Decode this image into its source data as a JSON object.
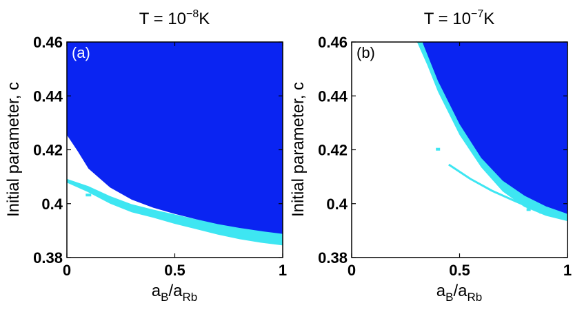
{
  "colors": {
    "dark": "#0a24f2",
    "light": "#3ee6f2",
    "background": "#ffffff"
  },
  "chart_data": [
    {
      "type": "heatmap",
      "panel": "(a)",
      "title": {
        "base": "T = 10",
        "exp": "−8",
        "unit": "K"
      },
      "xlabel": {
        "a": "a",
        "sub1": "B",
        "slash": "/a",
        "sub2": "Rb"
      },
      "ylabel": "Initial parameter, c",
      "xlim": [
        0,
        1
      ],
      "ylim": [
        0.38,
        0.46
      ],
      "xticks": [
        0,
        0.5,
        1
      ],
      "xticklabels": [
        "0",
        "0.5",
        "1"
      ],
      "yticks": [
        0.38,
        0.4,
        0.42,
        0.44,
        0.46
      ],
      "yticklabels": [
        "0.38",
        "0.4",
        "0.42",
        "0.44",
        "0.46"
      ],
      "regions": {
        "dark_lower_boundary": {
          "x": [
            0,
            0.05,
            0.1,
            0.2,
            0.3,
            0.4,
            0.5,
            0.6,
            0.7,
            0.8,
            0.9,
            1.0
          ],
          "c": [
            0.4255,
            0.4195,
            0.413,
            0.406,
            0.4015,
            0.3985,
            0.3962,
            0.3942,
            0.3924,
            0.391,
            0.3898,
            0.3888
          ]
        },
        "light_band": {
          "x": [
            0,
            0.1,
            0.2,
            0.3,
            0.4,
            0.5,
            0.6,
            0.7,
            0.8,
            0.9,
            1.0
          ],
          "upper": [
            0.4092,
            0.4065,
            0.4028,
            0.3998,
            0.3978,
            0.396,
            0.3942,
            0.3926,
            0.3912,
            0.39,
            0.389
          ],
          "lower": [
            0.4078,
            0.4042,
            0.4,
            0.3968,
            0.3948,
            0.3925,
            0.3905,
            0.3885,
            0.3868,
            0.3855,
            0.3845
          ]
        },
        "light_dots": [
          {
            "x": 0.1,
            "c": 0.4032
          }
        ]
      }
    },
    {
      "type": "heatmap",
      "panel": "(b)",
      "title": {
        "base": "T = 10",
        "exp": "−7",
        "unit": "K"
      },
      "xlabel": {
        "a": "a",
        "sub1": "B",
        "slash": "/a",
        "sub2": "Rb"
      },
      "ylabel": "Initial parameter, c",
      "xlim": [
        0,
        1
      ],
      "ylim": [
        0.38,
        0.46
      ],
      "xticks": [
        0,
        0.5,
        1
      ],
      "xticklabels": [
        "0",
        "0.5",
        "1"
      ],
      "yticks": [
        0.38,
        0.4,
        0.42,
        0.44,
        0.46
      ],
      "yticklabels": [
        "0.38",
        "0.4",
        "0.42",
        "0.44",
        "0.46"
      ],
      "regions": {
        "dark_lower_boundary": {
          "x": [
            0.33,
            0.4,
            0.5,
            0.6,
            0.7,
            0.8,
            0.9,
            1.0
          ],
          "c": [
            0.4595,
            0.4455,
            0.4295,
            0.417,
            0.4085,
            0.403,
            0.399,
            0.3962
          ]
        },
        "light_outer_boundary": {
          "x": [
            0.3,
            0.35,
            0.4,
            0.5,
            0.6,
            0.7,
            0.8,
            0.9,
            1.0
          ],
          "c": [
            0.4605,
            0.4515,
            0.4415,
            0.4255,
            0.4135,
            0.4045,
            0.3988,
            0.3955,
            0.3935
          ]
        },
        "light_streak": {
          "x": [
            0.45,
            0.55,
            0.65,
            0.75,
            0.8
          ],
          "c": [
            0.4145,
            0.4092,
            0.4048,
            0.4012,
            0.3995
          ]
        },
        "light_dots": [
          {
            "x": 0.4,
            "c": 0.4202
          },
          {
            "x": 0.82,
            "c": 0.3978
          },
          {
            "x": 0.88,
            "c": 0.3968
          }
        ]
      }
    }
  ]
}
